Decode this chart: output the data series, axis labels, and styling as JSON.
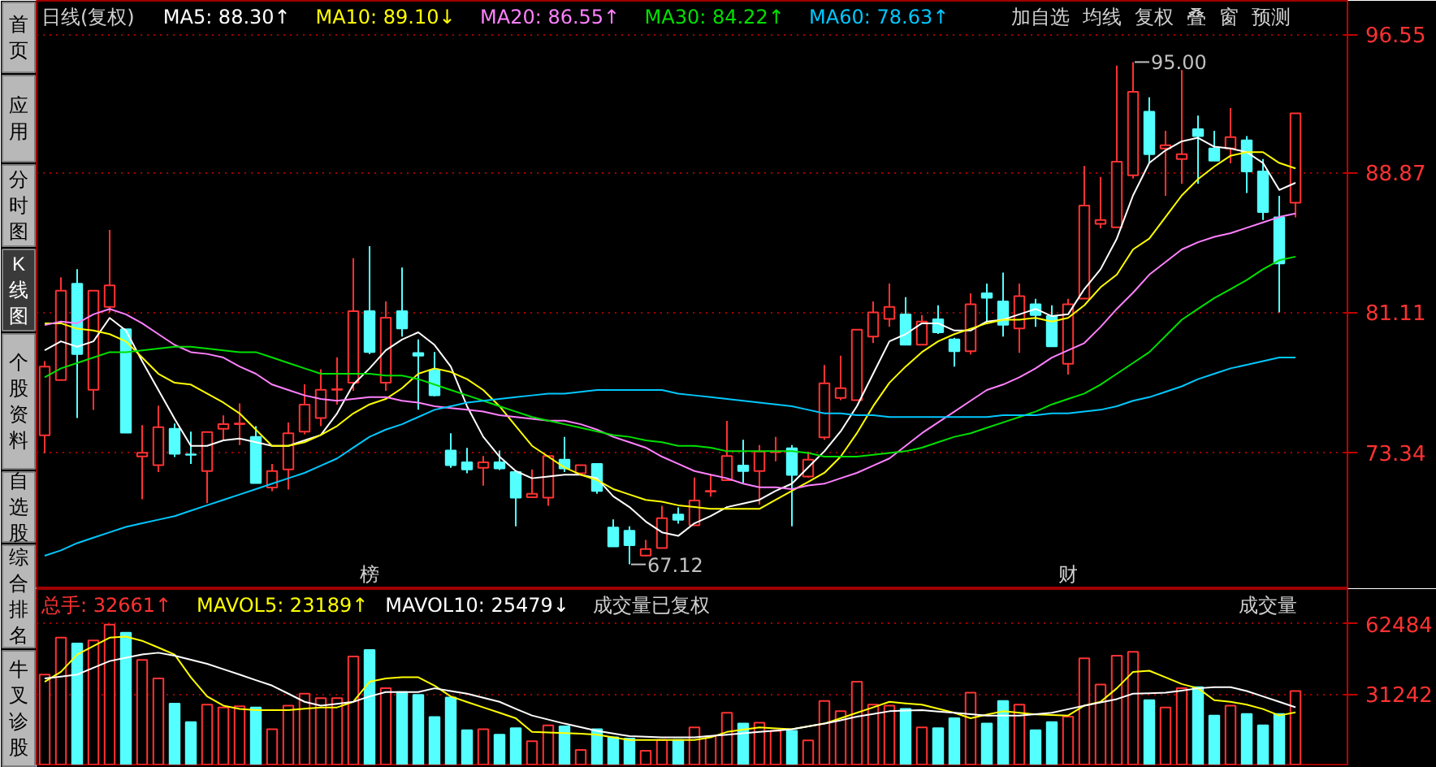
{
  "chart_data": [
    {
      "type": "candlestick",
      "title": "日线(复权)",
      "categories": [
        null,
        null,
        null,
        null,
        null,
        null,
        null,
        null,
        null,
        null,
        null,
        null,
        null,
        null,
        null,
        null,
        null,
        null,
        null,
        null,
        null,
        null,
        null,
        null,
        null,
        null,
        null,
        null,
        null,
        null,
        null,
        null,
        null,
        null,
        null,
        null,
        null,
        null,
        null,
        null,
        null,
        null,
        null,
        null,
        null,
        null,
        null,
        null,
        null,
        null,
        null,
        null,
        null,
        null,
        null,
        null,
        null,
        null,
        null,
        null,
        null,
        null,
        null,
        null,
        null,
        null,
        null,
        null,
        null,
        null,
        null,
        null,
        null,
        null,
        null,
        null,
        null,
        null
      ],
      "ohlc": [
        [
          74.28,
          78.4,
          73.29,
          78.1
        ],
        [
          77.35,
          83.06,
          77.35,
          82.31
        ],
        [
          82.7,
          83.51,
          75.24,
          78.79
        ],
        [
          76.81,
          82.31,
          75.69,
          82.31
        ],
        [
          81.41,
          85.68,
          81.11,
          82.61
        ],
        [
          80.17,
          80.17,
          74.43,
          74.43
        ],
        [
          73.11,
          74.85,
          70.73,
          73.32
        ],
        [
          72.63,
          75.93,
          72.24,
          74.73
        ],
        [
          74.64,
          74.94,
          73.08,
          73.26
        ],
        [
          73.23,
          74.49,
          72.69,
          73.2
        ],
        [
          72.3,
          74.46,
          70.52,
          74.46
        ],
        [
          74.64,
          75.39,
          74.04,
          74.91
        ],
        [
          74.91,
          76.06,
          73.74,
          74.94
        ],
        [
          74.19,
          74.79,
          71.63,
          71.63
        ],
        [
          71.39,
          72.69,
          71.18,
          72.3
        ],
        [
          72.39,
          75.0,
          71.27,
          74.4
        ],
        [
          74.49,
          77.11,
          74.34,
          75.99
        ],
        [
          75.24,
          77.95,
          74.79,
          76.81
        ],
        [
          76.81,
          78.61,
          75.99,
          76.84
        ],
        [
          77.2,
          84.11,
          76.75,
          81.17
        ],
        [
          81.17,
          84.78,
          78.79,
          78.91
        ],
        [
          77.2,
          81.71,
          76.75,
          80.81
        ],
        [
          81.17,
          83.6,
          79.76,
          80.21
        ],
        [
          78.85,
          79.61,
          75.7,
          78.7
        ],
        [
          77.89,
          78.91,
          76.45,
          76.51
        ],
        [
          73.44,
          74.4,
          72.48,
          72.63
        ],
        [
          72.78,
          73.59,
          72.18,
          72.39
        ],
        [
          72.48,
          73.14,
          71.49,
          72.78
        ],
        [
          72.78,
          73.44,
          72.36,
          72.45
        ],
        [
          72.24,
          72.27,
          69.23,
          70.82
        ],
        [
          70.85,
          72.39,
          70.85,
          71.04
        ],
        [
          70.82,
          73.14,
          70.37,
          73.14
        ],
        [
          72.93,
          74.19,
          72.24,
          72.45
        ],
        [
          72.18,
          72.63,
          72.18,
          72.63
        ],
        [
          72.69,
          72.69,
          71.04,
          71.19
        ],
        [
          69.17,
          69.62,
          68.12,
          68.12
        ],
        [
          68.99,
          69.23,
          67.12,
          68.18
        ],
        [
          67.61,
          68.48,
          67.55,
          67.97
        ],
        [
          68.03,
          70.37,
          68.03,
          69.68
        ],
        [
          69.89,
          70.28,
          69.38,
          69.59
        ],
        [
          69.29,
          71.94,
          69.29,
          70.67
        ],
        [
          71.16,
          72.09,
          70.88,
          71.19
        ],
        [
          71.79,
          75.09,
          71.79,
          73.14
        ],
        [
          72.6,
          74.04,
          71.64,
          72.3
        ],
        [
          72.3,
          73.74,
          70.44,
          73.38
        ],
        [
          73.35,
          74.19,
          72.84,
          73.38
        ],
        [
          73.56,
          73.74,
          69.23,
          72.09
        ],
        [
          72.0,
          73.38,
          71.94,
          72.93
        ],
        [
          74.17,
          78.19,
          74.04,
          77.17
        ],
        [
          76.36,
          78.7,
          76.24,
          76.9
        ],
        [
          76.24,
          80.15,
          76.24,
          80.15
        ],
        [
          79.76,
          81.71,
          79.4,
          81.11
        ],
        [
          80.75,
          82.71,
          80.3,
          81.41
        ],
        [
          80.99,
          81.95,
          79.31,
          79.31
        ],
        [
          79.31,
          80.96,
          79.31,
          80.6
        ],
        [
          80.72,
          81.5,
          79.91,
          80.0
        ],
        [
          79.61,
          79.7,
          78.1,
          78.95
        ],
        [
          78.95,
          82.16,
          78.77,
          81.56
        ],
        [
          82.16,
          82.71,
          80.6,
          81.92
        ],
        [
          81.71,
          83.31,
          79.76,
          80.42
        ],
        [
          80.21,
          82.71,
          78.86,
          82.01
        ],
        [
          81.56,
          81.86,
          80.3,
          80.96
        ],
        [
          80.9,
          81.5,
          79.22,
          79.22
        ],
        [
          78.25,
          81.86,
          77.65,
          81.56
        ],
        [
          81.87,
          89.23,
          81.87,
          87.04
        ],
        [
          86.02,
          88.63,
          85.77,
          86.23
        ],
        [
          85.83,
          94.8,
          85.83,
          89.47
        ],
        [
          88.72,
          95.0,
          88.54,
          93.35
        ],
        [
          92.24,
          93.05,
          89.38,
          89.89
        ],
        [
          90.2,
          91.19,
          87.58,
          90.38
        ],
        [
          89.62,
          94.56,
          88.24,
          89.89
        ],
        [
          91.28,
          92.03,
          88.24,
          90.89
        ],
        [
          90.2,
          91.19,
          89.53,
          89.53
        ],
        [
          90.2,
          92.45,
          89.38,
          90.83
        ],
        [
          90.65,
          90.89,
          87.73,
          88.93
        ],
        [
          88.93,
          89.62,
          86.23,
          86.68
        ],
        [
          86.38,
          87.58,
          81.11,
          83.82
        ],
        [
          87.19,
          92.15,
          86.38,
          92.15
        ]
      ],
      "colors": [
        "#ff3232",
        "#ff3232",
        "#54ffff",
        "#ff3232",
        "#ff3232",
        "#54ffff",
        "#ff3232",
        "#ff3232",
        "#54ffff",
        "#54ffff",
        "#ff3232",
        "#ff3232",
        "#ff3232",
        "#54ffff",
        "#ff3232",
        "#ff3232",
        "#ff3232",
        "#ff3232",
        "#ff3232",
        "#ff3232",
        "#54ffff",
        "#ff3232",
        "#54ffff",
        "#54ffff",
        "#54ffff",
        "#54ffff",
        "#54ffff",
        "#ff3232",
        "#54ffff",
        "#54ffff",
        "#ff3232",
        "#ff3232",
        "#54ffff",
        "#ff3232",
        "#54ffff",
        "#54ffff",
        "#54ffff",
        "#ff3232",
        "#ff3232",
        "#54ffff",
        "#ff3232",
        "#ff3232",
        "#ff3232",
        "#54ffff",
        "#ff3232",
        "#ff3232",
        "#54ffff",
        "#ff3232",
        "#ff3232",
        "#ff3232",
        "#ff3232",
        "#ff3232",
        "#ff3232",
        "#54ffff",
        "#ff3232",
        "#54ffff",
        "#54ffff",
        "#ff3232",
        "#54ffff",
        "#54ffff",
        "#ff3232",
        "#54ffff",
        "#54ffff",
        "#ff3232",
        "#ff3232",
        "#ff3232",
        "#ff3232",
        "#ff3232",
        "#54ffff",
        "#ff3232",
        "#ff3232",
        "#54ffff",
        "#54ffff",
        "#ff3232",
        "#54ffff",
        "#54ffff",
        "#54ffff",
        "#ff3232"
      ],
      "series": [
        {
          "name": "MA5: 88.30↑",
          "type": "line",
          "color": "#ffffff",
          "values": [
            79.0,
            79.5,
            79.2,
            79.5,
            80.8,
            80.1,
            78.4,
            76.8,
            75.2,
            73.7,
            73.7,
            74.0,
            74.1,
            73.9,
            73.7,
            73.7,
            74.0,
            74.3,
            75.5,
            77.1,
            78.0,
            79.0,
            79.6,
            80.0,
            79.3,
            78.1,
            75.9,
            74.2,
            73.1,
            72.3,
            71.9,
            72.0,
            72.1,
            72.1,
            71.9,
            70.9,
            70.3,
            69.5,
            68.9,
            68.7,
            69.4,
            69.8,
            70.3,
            70.5,
            70.7,
            71.2,
            71.6,
            72.5,
            73.4,
            74.5,
            75.9,
            77.7,
            79.5,
            79.9,
            80.5,
            80.5,
            80.1,
            80.1,
            80.6,
            80.7,
            81.0,
            81.3,
            80.9,
            81.0,
            82.4,
            83.5,
            85.2,
            87.6,
            89.4,
            90.1,
            90.6,
            90.8,
            90.3,
            90.2,
            90.0,
            89.4,
            87.9,
            88.3
          ]
        },
        {
          "name": "MA10: 89.10↓",
          "type": "line",
          "color": "#ffff00",
          "values": [
            80.5,
            80.5,
            80.2,
            80.1,
            79.9,
            79.5,
            78.6,
            77.7,
            77.2,
            77.1,
            76.6,
            76.1,
            75.5,
            74.6,
            73.7,
            73.7,
            73.9,
            74.3,
            74.8,
            75.5,
            76.0,
            76.3,
            76.9,
            77.7,
            78.0,
            77.8,
            77.4,
            76.8,
            75.9,
            74.8,
            73.7,
            73.1,
            72.5,
            72.1,
            71.8,
            71.3,
            71.0,
            70.7,
            70.6,
            70.4,
            70.3,
            70.2,
            70.2,
            70.2,
            70.2,
            70.7,
            71.2,
            71.7,
            72.2,
            73.1,
            74.4,
            75.9,
            77.2,
            78.1,
            78.9,
            79.5,
            79.9,
            80.2,
            80.5,
            80.7,
            80.7,
            80.8,
            80.6,
            80.8,
            81.5,
            82.5,
            83.2,
            84.6,
            85.2,
            86.4,
            87.6,
            88.5,
            89.2,
            89.8,
            90.0,
            90.0,
            89.4,
            89.1
          ]
        },
        {
          "name": "MA20: 86.55↑",
          "type": "line",
          "color": "#ff80ff",
          "values": [
            80.4,
            80.6,
            80.5,
            81.0,
            81.3,
            81.0,
            80.5,
            79.9,
            79.3,
            78.9,
            78.8,
            78.6,
            78.1,
            77.7,
            77.1,
            76.8,
            76.5,
            76.3,
            76.2,
            76.3,
            76.4,
            76.4,
            76.2,
            76.1,
            75.9,
            75.8,
            75.7,
            75.6,
            75.4,
            75.3,
            75.2,
            75.1,
            75.1,
            74.9,
            74.6,
            74.2,
            73.9,
            73.6,
            73.1,
            72.7,
            72.3,
            72.1,
            71.9,
            71.6,
            71.4,
            71.4,
            71.3,
            71.5,
            71.6,
            71.9,
            72.2,
            72.6,
            73.0,
            73.7,
            74.4,
            75.0,
            75.6,
            76.2,
            76.8,
            77.1,
            77.5,
            78.0,
            78.6,
            79.0,
            79.4,
            80.3,
            81.3,
            82.2,
            83.2,
            83.9,
            84.6,
            85.0,
            85.3,
            85.5,
            85.8,
            86.1,
            86.4,
            86.6
          ]
        },
        {
          "name": "MA30: 84.22↑",
          "type": "line",
          "color": "#00e000",
          "values": [
            77.5,
            78.0,
            78.3,
            78.6,
            78.9,
            78.9,
            79.0,
            79.1,
            79.2,
            79.2,
            79.1,
            79.0,
            78.9,
            78.9,
            78.6,
            78.3,
            78.0,
            77.7,
            77.7,
            77.7,
            77.7,
            77.6,
            77.6,
            77.4,
            77.1,
            76.8,
            76.5,
            76.2,
            75.9,
            75.6,
            75.3,
            75.1,
            74.9,
            74.7,
            74.5,
            74.3,
            74.2,
            74.0,
            73.9,
            73.7,
            73.7,
            73.6,
            73.4,
            73.4,
            73.4,
            73.4,
            73.4,
            73.3,
            73.1,
            73.1,
            73.1,
            73.2,
            73.3,
            73.4,
            73.6,
            73.9,
            74.2,
            74.4,
            74.7,
            75.0,
            75.3,
            75.6,
            76.0,
            76.3,
            76.6,
            77.1,
            77.7,
            78.3,
            78.9,
            79.8,
            80.7,
            81.3,
            81.9,
            82.4,
            82.9,
            83.5,
            84.0,
            84.2
          ]
        },
        {
          "name": "MA60: 78.63↑",
          "type": "line",
          "color": "#00c8ff",
          "values": [
            67.6,
            67.9,
            68.3,
            68.6,
            68.9,
            69.2,
            69.4,
            69.6,
            69.8,
            70.1,
            70.4,
            70.7,
            71.0,
            71.3,
            71.6,
            71.9,
            72.2,
            72.6,
            73.0,
            73.6,
            74.2,
            74.6,
            74.9,
            75.3,
            75.7,
            75.9,
            76.1,
            76.2,
            76.3,
            76.4,
            76.5,
            76.6,
            76.6,
            76.7,
            76.8,
            76.8,
            76.8,
            76.8,
            76.8,
            76.6,
            76.5,
            76.4,
            76.3,
            76.2,
            76.1,
            76.0,
            75.9,
            75.7,
            75.5,
            75.5,
            75.4,
            75.4,
            75.3,
            75.3,
            75.3,
            75.3,
            75.3,
            75.3,
            75.3,
            75.4,
            75.4,
            75.4,
            75.5,
            75.5,
            75.6,
            75.7,
            75.9,
            76.2,
            76.4,
            76.7,
            77.0,
            77.4,
            77.7,
            78.0,
            78.2,
            78.4,
            78.6,
            78.6
          ]
        }
      ],
      "ylim": [
        65.75,
        98.4
      ],
      "yticks": [
        73.34,
        81.11,
        88.87,
        96.55
      ],
      "grid": "y",
      "legend": "top left",
      "tick_labels": "y",
      "annotations": [
        {
          "text": "95.00",
          "y": 95.0
        },
        "67.12",
        "榜",
        "财",
        "首页",
        "应用",
        "分时图",
        "K线图",
        "个股资料",
        "自选股",
        "综合排名",
        "牛叉诊股",
        "加自选",
        "均线",
        "复权",
        "叠",
        "窗",
        "预测"
      ]
    },
    {
      "type": "bar",
      "categories": [
        null,
        null,
        null,
        null,
        null,
        null,
        null,
        null,
        null,
        null,
        null,
        null,
        null,
        null,
        null,
        null,
        null,
        null,
        null,
        null,
        null,
        null,
        null,
        null,
        null,
        null,
        null,
        null,
        null,
        null,
        null,
        null,
        null,
        null,
        null,
        null,
        null,
        null,
        null,
        null,
        null,
        null,
        null,
        null,
        null,
        null,
        null,
        null,
        null,
        null,
        null,
        null,
        null,
        null,
        null,
        null,
        null,
        null,
        null,
        null,
        null,
        null,
        null,
        null,
        null,
        null,
        null,
        null,
        null,
        null,
        null,
        null,
        null,
        null,
        null,
        null,
        null,
        null
      ],
      "series": [
        {
          "name": "总手: 32661↑",
          "type": "bar",
          "colors": [
            "#ff3232",
            "#ff3232",
            "#54ffff",
            "#ff3232",
            "#ff3232",
            "#54ffff",
            "#ff3232",
            "#ff3232",
            "#54ffff",
            "#54ffff",
            "#ff3232",
            "#ff3232",
            "#ff3232",
            "#54ffff",
            "#ff3232",
            "#ff3232",
            "#ff3232",
            "#ff3232",
            "#ff3232",
            "#ff3232",
            "#54ffff",
            "#ff3232",
            "#54ffff",
            "#54ffff",
            "#54ffff",
            "#54ffff",
            "#54ffff",
            "#ff3232",
            "#54ffff",
            "#54ffff",
            "#ff3232",
            "#ff3232",
            "#54ffff",
            "#ff3232",
            "#54ffff",
            "#54ffff",
            "#54ffff",
            "#ff3232",
            "#ff3232",
            "#54ffff",
            "#ff3232",
            "#ff3232",
            "#ff3232",
            "#54ffff",
            "#ff3232",
            "#ff3232",
            "#54ffff",
            "#ff3232",
            "#ff3232",
            "#ff3232",
            "#ff3232",
            "#ff3232",
            "#ff3232",
            "#54ffff",
            "#ff3232",
            "#54ffff",
            "#54ffff",
            "#ff3232",
            "#54ffff",
            "#54ffff",
            "#ff3232",
            "#54ffff",
            "#54ffff",
            "#ff3232",
            "#ff3232",
            "#ff3232",
            "#ff3232",
            "#ff3232",
            "#54ffff",
            "#ff3232",
            "#ff3232",
            "#54ffff",
            "#54ffff",
            "#ff3232",
            "#54ffff",
            "#54ffff",
            "#54ffff",
            "#ff3232"
          ],
          "values": [
            40000,
            56400,
            53800,
            55200,
            62200,
            58600,
            46500,
            38300,
            27100,
            18900,
            26600,
            25400,
            25900,
            25400,
            15700,
            26200,
            31500,
            29500,
            29500,
            48000,
            50900,
            33900,
            32200,
            31000,
            21100,
            29800,
            15300,
            15700,
            13300,
            16200,
            10400,
            17400,
            17000,
            6500,
            15700,
            12100,
            11600,
            6100,
            10900,
            10900,
            16500,
            12600,
            23000,
            18200,
            18600,
            15000,
            15000,
            10700,
            28300,
            23700,
            36800,
            26600,
            26200,
            24700,
            16500,
            16200,
            20600,
            32000,
            18200,
            28300,
            26600,
            15300,
            18900,
            21300,
            47200,
            35600,
            48400,
            50100,
            28600,
            25400,
            33900,
            34400,
            21800,
            26200,
            22500,
            17400,
            22500,
            32661
          ]
        },
        {
          "name": "MAVOL5: 23189↑",
          "type": "line",
          "color": "#ffff00",
          "values": [
            36800,
            41200,
            48900,
            52700,
            56400,
            56900,
            55000,
            52000,
            48900,
            38800,
            30300,
            26200,
            24700,
            24200,
            24200,
            24200,
            24800,
            25400,
            25400,
            27900,
            36800,
            38300,
            38800,
            38800,
            35100,
            30300,
            27800,
            25400,
            23000,
            20600,
            14500,
            14300,
            14000,
            13700,
            13300,
            12100,
            10900,
            10900,
            10900,
            10900,
            10900,
            12100,
            14500,
            15500,
            16500,
            16100,
            15700,
            17000,
            18200,
            20600,
            23000,
            25400,
            27900,
            27200,
            26600,
            24800,
            23000,
            20600,
            22200,
            23700,
            23000,
            22300,
            22000,
            21800,
            26200,
            27900,
            33900,
            41200,
            41700,
            38800,
            35800,
            33900,
            28600,
            27900,
            26600,
            24700,
            21800,
            23189
          ]
        },
        {
          "name": "MAVOL10: 25479↓",
          "type": "line",
          "color": "#ffffff",
          "values": [
            38300,
            39100,
            40000,
            43000,
            46000,
            47500,
            48900,
            49700,
            48400,
            46600,
            44800,
            42400,
            40000,
            37500,
            35100,
            31500,
            27900,
            26200,
            27000,
            27900,
            30300,
            32200,
            32200,
            32200,
            33900,
            32700,
            31500,
            29700,
            27900,
            24800,
            21800,
            20000,
            18200,
            16600,
            15000,
            13800,
            12600,
            12400,
            12100,
            12100,
            12100,
            12700,
            13300,
            13900,
            14500,
            15100,
            15700,
            17000,
            18200,
            19700,
            21300,
            22500,
            23700,
            24000,
            24200,
            23600,
            23000,
            22400,
            21800,
            21800,
            21800,
            22400,
            23000,
            24600,
            26200,
            27600,
            29100,
            31500,
            31700,
            32000,
            32900,
            33900,
            34400,
            34400,
            32700,
            30300,
            27900,
            25479
          ]
        }
      ],
      "ylim": [
        0,
        78000
      ],
      "yticks": [
        31242,
        62484
      ],
      "grid": "y",
      "legend": "top left",
      "tick_labels": "y",
      "annotations": [
        "成交量已复权",
        "成交量"
      ]
    }
  ]
}
